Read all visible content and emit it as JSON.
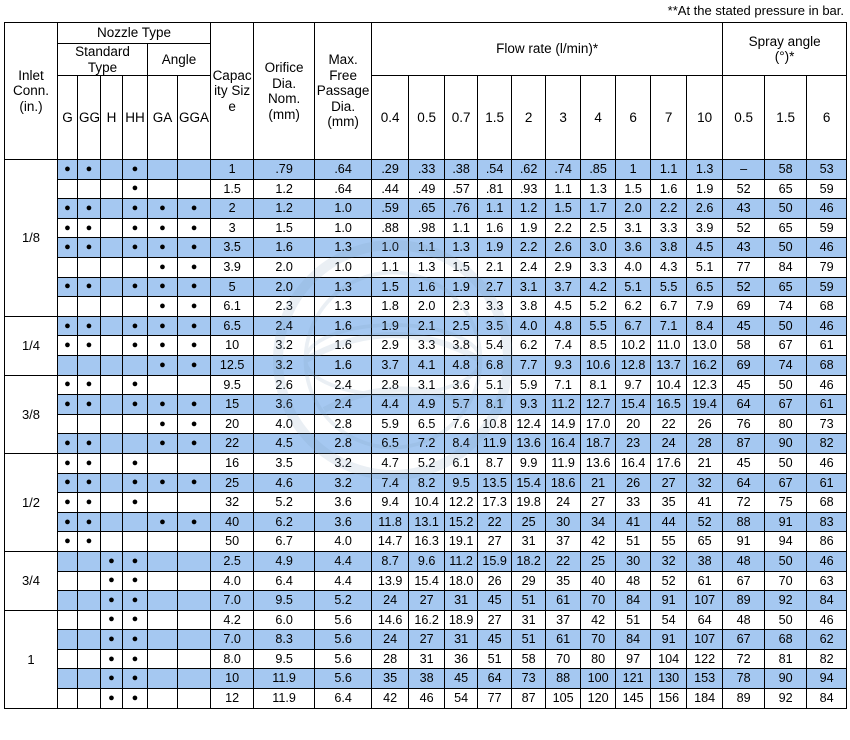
{
  "note": "**At the stated pressure in bar.",
  "colors": {
    "row_highlight": "#a5c8f1",
    "watermark": "#7f9fc0"
  },
  "header": {
    "inlet": "Inlet Conn. (in.)",
    "nozzle_type": "Nozzle Type",
    "standard_type": "Standard Type",
    "angle": "Angle",
    "type_cols": [
      "G",
      "GG",
      "H",
      "HH",
      "GA",
      "GGA"
    ],
    "capacity": "Capacity Size",
    "orifice": "Orifice Dia. Nom. (mm)",
    "passage": "Max. Free Passage Dia. (mm)",
    "flow_rate": "Flow rate (l/min)*",
    "flow_pressures": [
      "0.4",
      "0.5",
      "0.7",
      "1.5",
      "2",
      "3",
      "4",
      "6",
      "7",
      "10"
    ],
    "spray_angle": "Spray angle (°)*",
    "spray_pressures": [
      "0.5",
      "1.5",
      "6"
    ]
  },
  "groups": [
    {
      "inlet": "1/8",
      "rows": [
        {
          "cap": "1",
          "orifice": ".79",
          "passage": ".64",
          "types": [
            1,
            1,
            0,
            1,
            0,
            0
          ],
          "flows": [
            ".29",
            ".33",
            ".38",
            ".54",
            ".62",
            ".74",
            ".85",
            "1",
            "1.1",
            "1.3"
          ],
          "angles": [
            "–",
            "58",
            "53"
          ]
        },
        {
          "cap": "1.5",
          "orifice": "1.2",
          "passage": ".64",
          "types": [
            0,
            0,
            0,
            1,
            0,
            0
          ],
          "flows": [
            ".44",
            ".49",
            ".57",
            ".81",
            ".93",
            "1.1",
            "1.3",
            "1.5",
            "1.6",
            "1.9"
          ],
          "angles": [
            "52",
            "65",
            "59"
          ]
        },
        {
          "cap": "2",
          "orifice": "1.2",
          "passage": "1.0",
          "types": [
            1,
            1,
            0,
            1,
            1,
            1
          ],
          "flows": [
            ".59",
            ".65",
            ".76",
            "1.1",
            "1.2",
            "1.5",
            "1.7",
            "2.0",
            "2.2",
            "2.6"
          ],
          "angles": [
            "43",
            "50",
            "46"
          ]
        },
        {
          "cap": "3",
          "orifice": "1.5",
          "passage": "1.0",
          "types": [
            1,
            1,
            0,
            1,
            1,
            1
          ],
          "flows": [
            ".88",
            ".98",
            "1.1",
            "1.6",
            "1.9",
            "2.2",
            "2.5",
            "3.1",
            "3.3",
            "3.9"
          ],
          "angles": [
            "52",
            "65",
            "59"
          ]
        },
        {
          "cap": "3.5",
          "orifice": "1.6",
          "passage": "1.3",
          "types": [
            1,
            1,
            0,
            1,
            1,
            1
          ],
          "flows": [
            "1.0",
            "1.1",
            "1.3",
            "1.9",
            "2.2",
            "2.6",
            "3.0",
            "3.6",
            "3.8",
            "4.5"
          ],
          "angles": [
            "43",
            "50",
            "46"
          ]
        },
        {
          "cap": "3.9",
          "orifice": "2.0",
          "passage": "1.0",
          "types": [
            0,
            0,
            0,
            0,
            1,
            1
          ],
          "flows": [
            "1.1",
            "1.3",
            "1.5",
            "2.1",
            "2.4",
            "2.9",
            "3.3",
            "4.0",
            "4.3",
            "5.1"
          ],
          "angles": [
            "77",
            "84",
            "79"
          ]
        },
        {
          "cap": "5",
          "orifice": "2.0",
          "passage": "1.3",
          "types": [
            1,
            1,
            0,
            1,
            1,
            1
          ],
          "flows": [
            "1.5",
            "1.6",
            "1.9",
            "2.7",
            "3.1",
            "3.7",
            "4.2",
            "5.1",
            "5.5",
            "6.5"
          ],
          "angles": [
            "52",
            "65",
            "59"
          ]
        },
        {
          "cap": "6.1",
          "orifice": "2.3",
          "passage": "1.3",
          "types": [
            0,
            0,
            0,
            0,
            1,
            1
          ],
          "flows": [
            "1.8",
            "2.0",
            "2.3",
            "3.3",
            "3.8",
            "4.5",
            "5.2",
            "6.2",
            "6.7",
            "7.9"
          ],
          "angles": [
            "69",
            "74",
            "68"
          ]
        }
      ]
    },
    {
      "inlet": "1/4",
      "rows": [
        {
          "cap": "6.5",
          "orifice": "2.4",
          "passage": "1.6",
          "types": [
            1,
            1,
            0,
            1,
            1,
            1
          ],
          "flows": [
            "1.9",
            "2.1",
            "2.5",
            "3.5",
            "4.0",
            "4.8",
            "5.5",
            "6.7",
            "7.1",
            "8.4"
          ],
          "angles": [
            "45",
            "50",
            "46"
          ]
        },
        {
          "cap": "10",
          "orifice": "3.2",
          "passage": "1.6",
          "types": [
            1,
            1,
            0,
            1,
            1,
            1
          ],
          "flows": [
            "2.9",
            "3.3",
            "3.8",
            "5.4",
            "6.2",
            "7.4",
            "8.5",
            "10.2",
            "11.0",
            "13.0"
          ],
          "angles": [
            "58",
            "67",
            "61"
          ]
        },
        {
          "cap": "12.5",
          "orifice": "3.2",
          "passage": "1.6",
          "types": [
            0,
            0,
            0,
            0,
            1,
            1
          ],
          "flows": [
            "3.7",
            "4.1",
            "4.8",
            "6.8",
            "7.7",
            "9.3",
            "10.6",
            "12.8",
            "13.7",
            "16.2"
          ],
          "angles": [
            "69",
            "74",
            "68"
          ]
        }
      ]
    },
    {
      "inlet": "3/8",
      "rows": [
        {
          "cap": "9.5",
          "orifice": "2.6",
          "passage": "2.4",
          "types": [
            1,
            1,
            0,
            1,
            0,
            0
          ],
          "flows": [
            "2.8",
            "3.1",
            "3.6",
            "5.1",
            "5.9",
            "7.1",
            "8.1",
            "9.7",
            "10.4",
            "12.3"
          ],
          "angles": [
            "45",
            "50",
            "46"
          ]
        },
        {
          "cap": "15",
          "orifice": "3.6",
          "passage": "2.4",
          "types": [
            1,
            1,
            0,
            1,
            1,
            1
          ],
          "flows": [
            "4.4",
            "4.9",
            "5.7",
            "8.1",
            "9.3",
            "11.2",
            "12.7",
            "15.4",
            "16.5",
            "19.4"
          ],
          "angles": [
            "64",
            "67",
            "61"
          ]
        },
        {
          "cap": "20",
          "orifice": "4.0",
          "passage": "2.8",
          "types": [
            0,
            0,
            0,
            0,
            1,
            1
          ],
          "flows": [
            "5.9",
            "6.5",
            "7.6",
            "10.8",
            "12.4",
            "14.9",
            "17.0",
            "20",
            "22",
            "26"
          ],
          "angles": [
            "76",
            "80",
            "73"
          ]
        },
        {
          "cap": "22",
          "orifice": "4.5",
          "passage": "2.8",
          "types": [
            1,
            1,
            0,
            0,
            1,
            1
          ],
          "flows": [
            "6.5",
            "7.2",
            "8.4",
            "11.9",
            "13.6",
            "16.4",
            "18.7",
            "23",
            "24",
            "28"
          ],
          "angles": [
            "87",
            "90",
            "82"
          ]
        }
      ]
    },
    {
      "inlet": "1/2",
      "rows": [
        {
          "cap": "16",
          "orifice": "3.5",
          "passage": "3.2",
          "types": [
            1,
            1,
            0,
            1,
            0,
            0
          ],
          "flows": [
            "4.7",
            "5.2",
            "6.1",
            "8.7",
            "9.9",
            "11.9",
            "13.6",
            "16.4",
            "17.6",
            "21"
          ],
          "angles": [
            "45",
            "50",
            "46"
          ]
        },
        {
          "cap": "25",
          "orifice": "4.6",
          "passage": "3.2",
          "types": [
            1,
            1,
            0,
            1,
            1,
            1
          ],
          "flows": [
            "7.4",
            "8.2",
            "9.5",
            "13.5",
            "15.4",
            "18.6",
            "21",
            "26",
            "27",
            "32"
          ],
          "angles": [
            "64",
            "67",
            "61"
          ]
        },
        {
          "cap": "32",
          "orifice": "5.2",
          "passage": "3.6",
          "types": [
            1,
            1,
            0,
            1,
            0,
            0
          ],
          "flows": [
            "9.4",
            "10.4",
            "12.2",
            "17.3",
            "19.8",
            "24",
            "27",
            "33",
            "35",
            "41"
          ],
          "angles": [
            "72",
            "75",
            "68"
          ]
        },
        {
          "cap": "40",
          "orifice": "6.2",
          "passage": "3.6",
          "types": [
            1,
            1,
            0,
            0,
            1,
            1
          ],
          "flows": [
            "11.8",
            "13.1",
            "15.2",
            "22",
            "25",
            "30",
            "34",
            "41",
            "44",
            "52"
          ],
          "angles": [
            "88",
            "91",
            "83"
          ]
        },
        {
          "cap": "50",
          "orifice": "6.7",
          "passage": "4.0",
          "types": [
            1,
            1,
            0,
            0,
            0,
            0
          ],
          "flows": [
            "14.7",
            "16.3",
            "19.1",
            "27",
            "31",
            "37",
            "42",
            "51",
            "55",
            "65"
          ],
          "angles": [
            "91",
            "94",
            "86"
          ]
        }
      ]
    },
    {
      "inlet": "3/4",
      "rows": [
        {
          "cap": "2.5",
          "orifice": "4.9",
          "passage": "4.4",
          "types": [
            0,
            0,
            1,
            1,
            0,
            0
          ],
          "flows": [
            "8.7",
            "9.6",
            "11.2",
            "15.9",
            "18.2",
            "22",
            "25",
            "30",
            "32",
            "38"
          ],
          "angles": [
            "48",
            "50",
            "46"
          ]
        },
        {
          "cap": "4.0",
          "orifice": "6.4",
          "passage": "4.4",
          "types": [
            0,
            0,
            1,
            1,
            0,
            0
          ],
          "flows": [
            "13.9",
            "15.4",
            "18.0",
            "26",
            "29",
            "35",
            "40",
            "48",
            "52",
            "61"
          ],
          "angles": [
            "67",
            "70",
            "63"
          ]
        },
        {
          "cap": "7.0",
          "orifice": "9.5",
          "passage": "5.2",
          "types": [
            0,
            0,
            1,
            1,
            0,
            0
          ],
          "flows": [
            "24",
            "27",
            "31",
            "45",
            "51",
            "61",
            "70",
            "84",
            "91",
            "107"
          ],
          "angles": [
            "89",
            "92",
            "84"
          ]
        }
      ]
    },
    {
      "inlet": "1",
      "rows": [
        {
          "cap": "4.2",
          "orifice": "6.0",
          "passage": "5.6",
          "types": [
            0,
            0,
            1,
            1,
            0,
            0
          ],
          "flows": [
            "14.6",
            "16.2",
            "18.9",
            "27",
            "31",
            "37",
            "42",
            "51",
            "54",
            "64"
          ],
          "angles": [
            "48",
            "50",
            "46"
          ]
        },
        {
          "cap": "7.0",
          "orifice": "8.3",
          "passage": "5.6",
          "types": [
            0,
            0,
            1,
            1,
            0,
            0
          ],
          "flows": [
            "24",
            "27",
            "31",
            "45",
            "51",
            "61",
            "70",
            "84",
            "91",
            "107"
          ],
          "angles": [
            "67",
            "68",
            "62"
          ]
        },
        {
          "cap": "8.0",
          "orifice": "9.5",
          "passage": "5.6",
          "types": [
            0,
            0,
            1,
            1,
            0,
            0
          ],
          "flows": [
            "28",
            "31",
            "36",
            "51",
            "58",
            "70",
            "80",
            "97",
            "104",
            "122"
          ],
          "angles": [
            "72",
            "81",
            "82"
          ]
        },
        {
          "cap": "10",
          "orifice": "11.9",
          "passage": "5.6",
          "types": [
            0,
            0,
            1,
            1,
            0,
            0
          ],
          "flows": [
            "35",
            "38",
            "45",
            "64",
            "73",
            "88",
            "100",
            "121",
            "130",
            "153"
          ],
          "angles": [
            "78",
            "90",
            "94"
          ]
        },
        {
          "cap": "12",
          "orifice": "11.9",
          "passage": "6.4",
          "types": [
            0,
            0,
            1,
            1,
            0,
            0
          ],
          "flows": [
            "42",
            "46",
            "54",
            "77",
            "87",
            "105",
            "120",
            "145",
            "156",
            "184"
          ],
          "angles": [
            "89",
            "92",
            "84"
          ]
        }
      ]
    }
  ]
}
